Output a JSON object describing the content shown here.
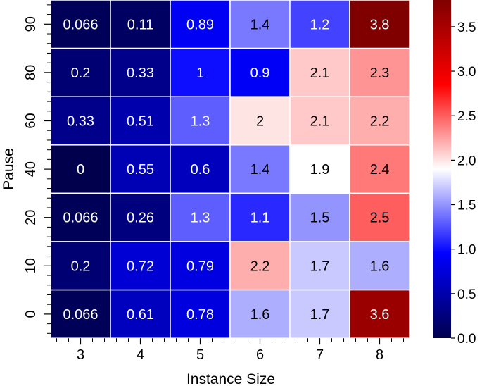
{
  "chart_data": {
    "type": "heatmap",
    "title": "",
    "xlabel": "Instance Size",
    "ylabel": "Pause",
    "x_categories": [
      "3",
      "4",
      "5",
      "6",
      "7",
      "8"
    ],
    "y_categories": [
      "90",
      "80",
      "60",
      "40",
      "20",
      "10",
      "0"
    ],
    "values": [
      [
        0.066,
        0.11,
        0.89,
        1.4,
        1.2,
        3.8
      ],
      [
        0.2,
        0.33,
        1,
        0.9,
        2.1,
        2.3
      ],
      [
        0.33,
        0.51,
        1.3,
        2,
        2.1,
        2.2
      ],
      [
        0,
        0.55,
        0.6,
        1.4,
        1.9,
        2.4
      ],
      [
        0.066,
        0.26,
        1.3,
        1.1,
        1.5,
        2.5
      ],
      [
        0.2,
        0.72,
        0.79,
        2.2,
        1.7,
        1.6
      ],
      [
        0.066,
        0.61,
        0.78,
        1.6,
        1.7,
        3.6
      ]
    ],
    "value_labels": [
      [
        "0.066",
        "0.11",
        "0.89",
        "1.4",
        "1.2",
        "3.8"
      ],
      [
        "0.2",
        "0.33",
        "1",
        "0.9",
        "2.1",
        "2.3"
      ],
      [
        "0.33",
        "0.51",
        "1.3",
        "2",
        "2.1",
        "2.2"
      ],
      [
        "0",
        "0.55",
        "0.6",
        "1.4",
        "1.9",
        "2.4"
      ],
      [
        "0.066",
        "0.26",
        "1.3",
        "1.1",
        "1.5",
        "2.5"
      ],
      [
        "0.2",
        "0.72",
        "0.79",
        "2.2",
        "1.7",
        "1.6"
      ],
      [
        "0.066",
        "0.61",
        "0.78",
        "1.6",
        "1.7",
        "3.6"
      ]
    ],
    "colorbar": {
      "min": 0.0,
      "max": 3.8,
      "center": 1.9,
      "ticks": [
        "0.0",
        "0.5",
        "1.0",
        "1.5",
        "2.0",
        "2.5",
        "3.0",
        "3.5"
      ],
      "colormap": "seismic"
    }
  }
}
